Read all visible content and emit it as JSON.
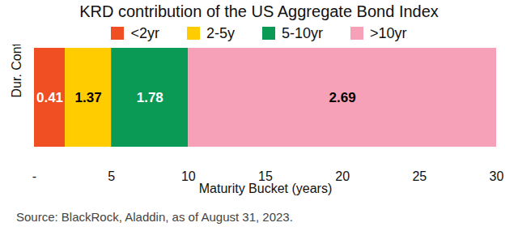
{
  "chart_data": {
    "type": "bar",
    "orientation": "horizontal",
    "stacked": true,
    "title": "KRD contribution of the US Aggregate Bond Index",
    "categories": [
      "<2yr",
      "2-5y",
      "5-10yr",
      ">10yr"
    ],
    "values": [
      0.41,
      1.37,
      1.78,
      2.69
    ],
    "bucket_start": [
      0,
      2,
      5,
      10
    ],
    "bucket_end": [
      2,
      5,
      10,
      30
    ],
    "colors": [
      "#f04e23",
      "#ffcc00",
      "#0a9a55",
      "#f7a1b8"
    ],
    "data_labels": true,
    "legend": "top",
    "xlabel": "Maturity Bucket (years)",
    "ylabel": "Dur. Cont.",
    "xlim": [
      0,
      30
    ],
    "xticks": [
      {
        "value": 0,
        "label": "-"
      },
      5,
      10,
      15,
      20,
      25,
      30
    ],
    "tick_labels": "x",
    "source": "Source: BlackRock, Aladdin, as of August 31, 2023."
  }
}
